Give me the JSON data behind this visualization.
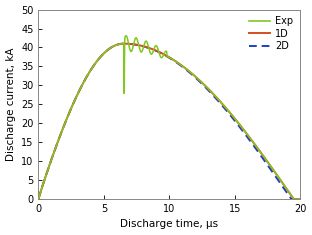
{
  "title": "",
  "xlabel": "Discharge time, μs",
  "ylabel": "Discharge current, kA",
  "xlim": [
    0,
    20
  ],
  "ylim": [
    0,
    50
  ],
  "xticks": [
    0,
    5,
    10,
    15,
    20
  ],
  "yticks": [
    0,
    5,
    10,
    15,
    20,
    25,
    30,
    35,
    40,
    45,
    50
  ],
  "color_exp": "#80c820",
  "color_1d": "#d05020",
  "color_2d": "#2040c0",
  "legend_labels": [
    "Exp",
    "1D",
    "2D"
  ],
  "bg_color": "#ffffff"
}
